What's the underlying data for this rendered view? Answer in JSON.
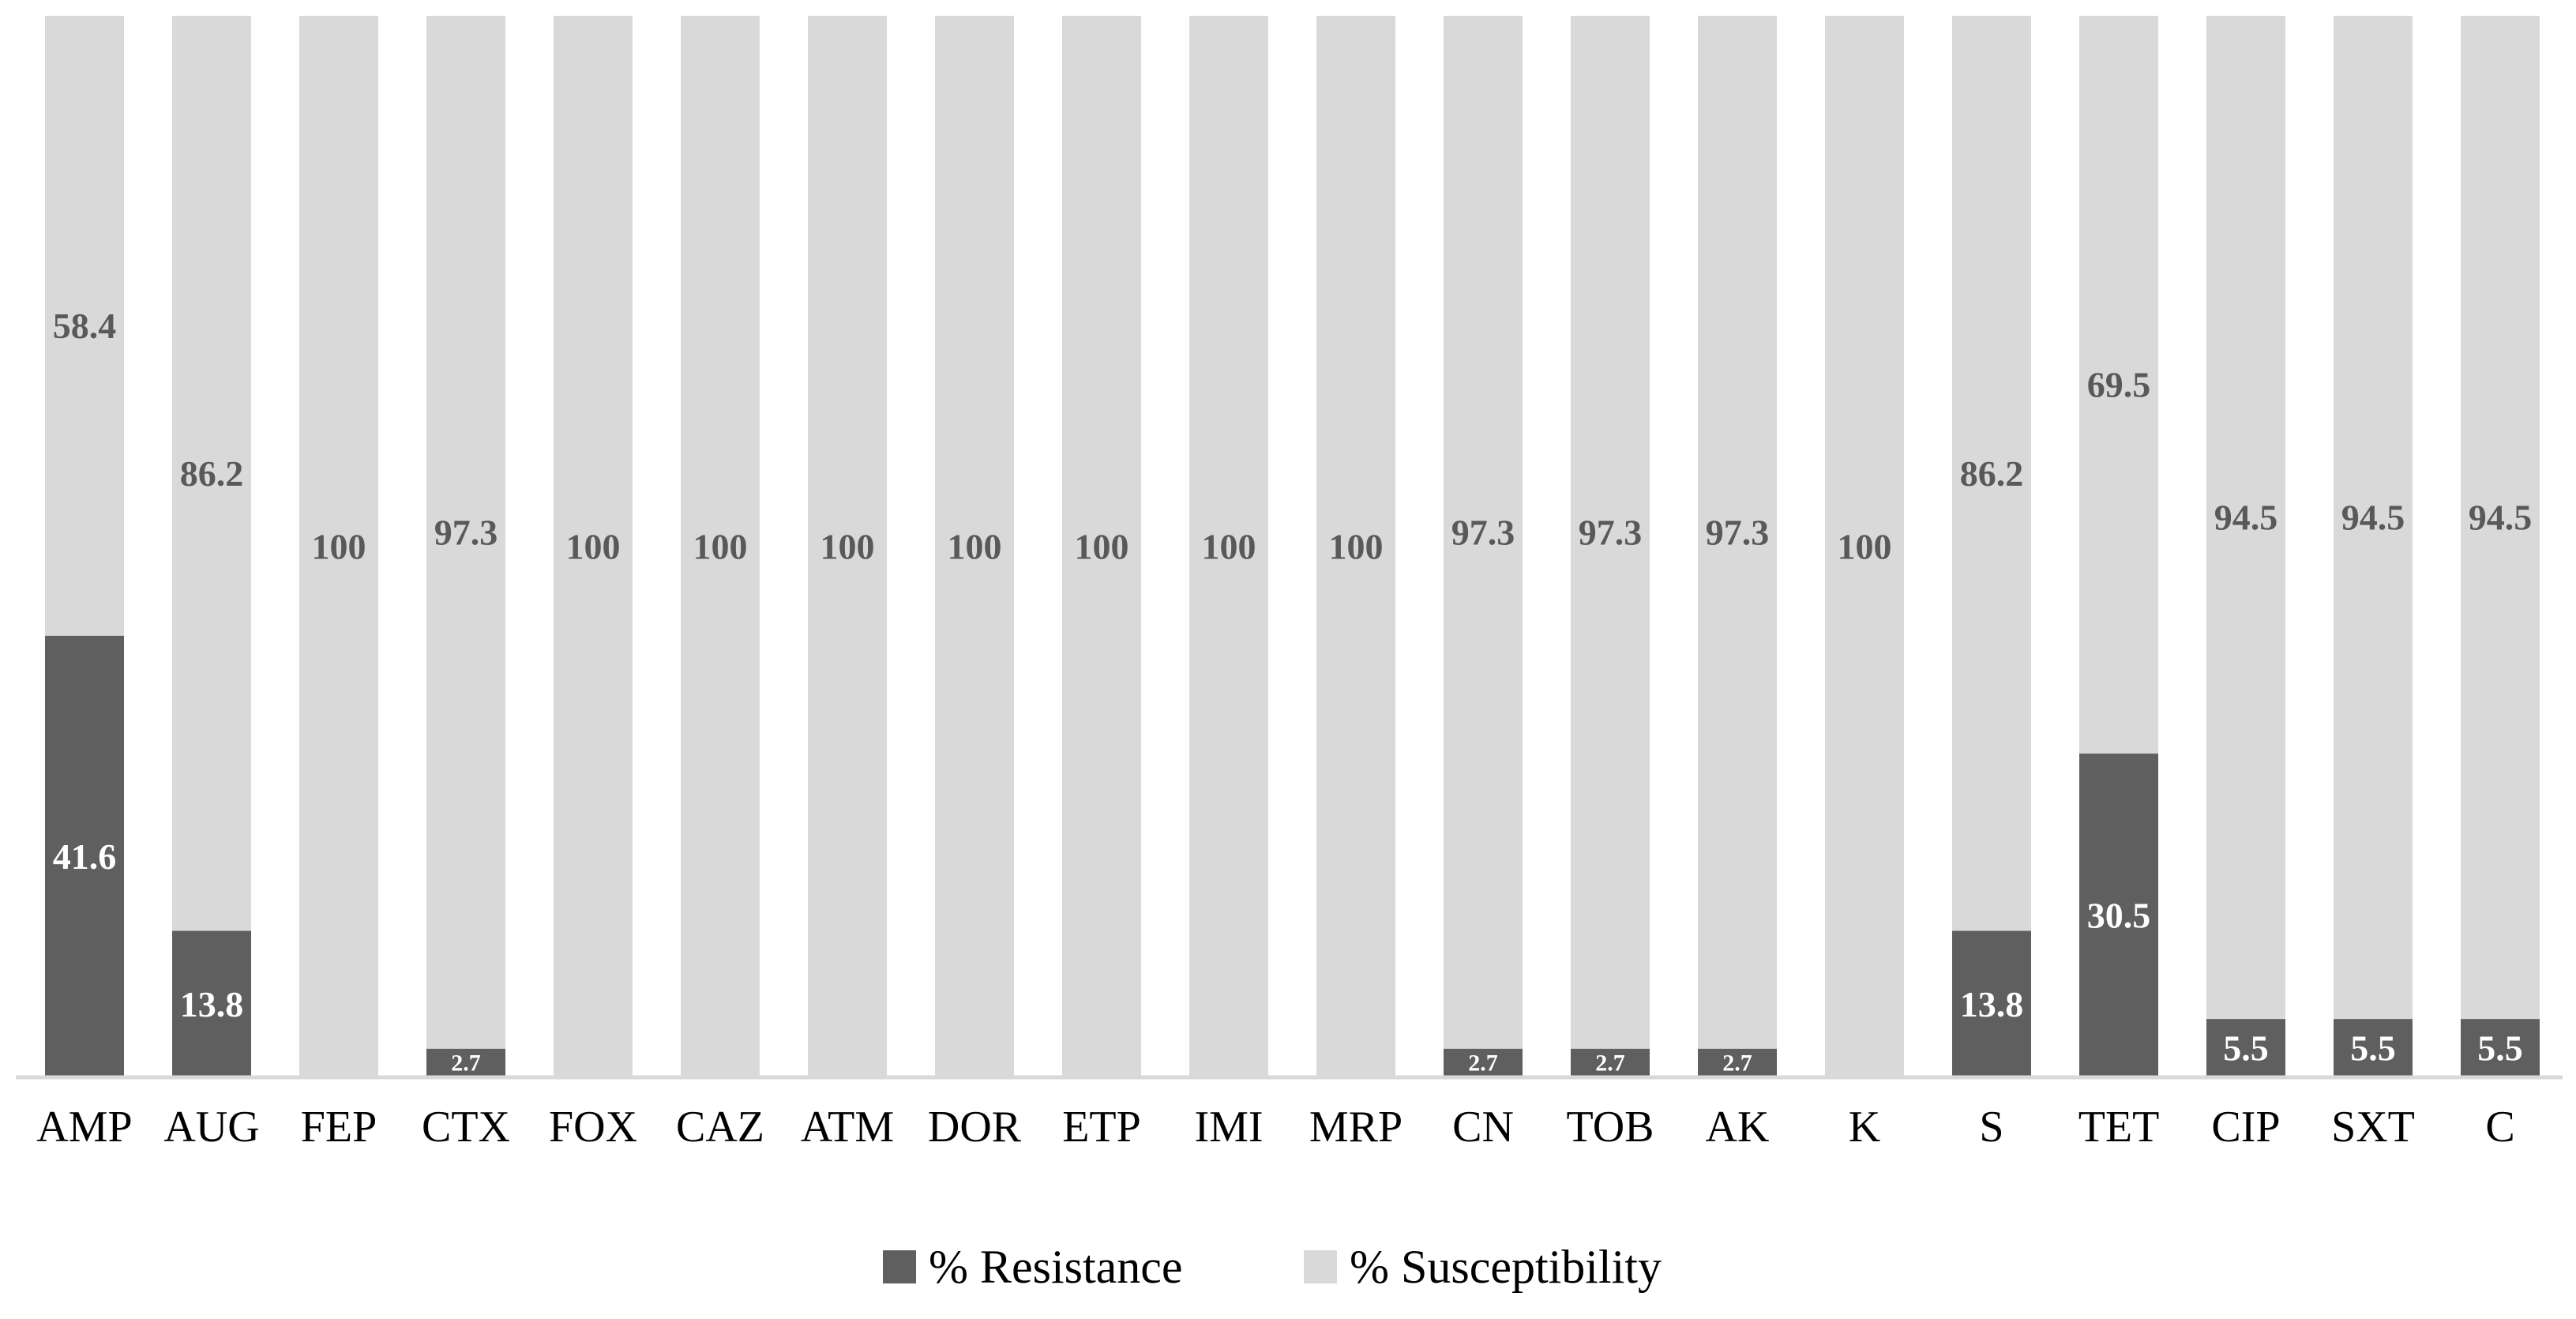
{
  "chart_data": {
    "type": "bar",
    "stacked": true,
    "title": "",
    "xlabel": "",
    "ylabel": "",
    "ylim": [
      0,
      100
    ],
    "grid": false,
    "legend_position": "bottom",
    "categories": [
      "AMP",
      "AUG",
      "FEP",
      "CTX",
      "FOX",
      "CAZ",
      "ATM",
      "DOR",
      "ETP",
      "IMI",
      "MRP",
      "CN",
      "TOB",
      "AK",
      "K",
      "S",
      "TET",
      "CIP",
      "SXT",
      "C"
    ],
    "series": [
      {
        "name": "% Resistance",
        "color": "#5f5f5f",
        "label_color": "#ffffff",
        "values": [
          41.6,
          13.8,
          0,
          2.7,
          0,
          0,
          0,
          0,
          0,
          0,
          0,
          2.7,
          2.7,
          2.7,
          0,
          13.8,
          30.5,
          5.5,
          5.5,
          5.5
        ],
        "labels": [
          "41.6",
          "13.8",
          "",
          "2.7",
          "",
          "",
          "",
          "",
          "",
          "",
          "",
          "2.7",
          "2.7",
          "2.7",
          "",
          "13.8",
          "30.5",
          "5.5",
          "5.5",
          "5.5"
        ]
      },
      {
        "name": "% Susceptibility",
        "color": "#d9d9d9",
        "label_color": "#595959",
        "values": [
          58.4,
          86.2,
          100,
          97.3,
          100,
          100,
          100,
          100,
          100,
          100,
          100,
          97.3,
          97.3,
          97.3,
          100,
          86.2,
          69.5,
          94.5,
          94.5,
          94.5
        ],
        "labels": [
          "58.4",
          "86.2",
          "100",
          "97.3",
          "100",
          "100",
          "100",
          "100",
          "100",
          "100",
          "100",
          "97.3",
          "97.3",
          "97.3",
          "100",
          "86.2",
          "69.5",
          "94.5",
          "94.5",
          "94.5"
        ]
      }
    ]
  }
}
